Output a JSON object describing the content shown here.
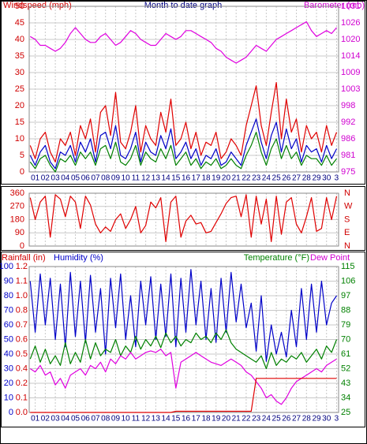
{
  "chart_data": [
    {
      "type": "line",
      "title": "Month to date graph",
      "ylabel": "Windspeed (mph)",
      "y2label": "Barometer (mb)",
      "xlim": [
        0.4,
        31.2
      ],
      "xticks": [
        {
          "value": 1,
          "label": "01"
        },
        {
          "value": 2,
          "label": "02"
        },
        {
          "value": 3,
          "label": "03"
        },
        {
          "value": 4,
          "label": "04"
        },
        {
          "value": 5,
          "label": "05"
        },
        {
          "value": 6,
          "label": "06"
        },
        {
          "value": 7,
          "label": "07"
        },
        {
          "value": 8,
          "label": "08"
        },
        {
          "value": 9,
          "label": "09"
        },
        10,
        11,
        12,
        13,
        14,
        15,
        16,
        17,
        18,
        19,
        20,
        21,
        22,
        23,
        24,
        25,
        26,
        27,
        28,
        29,
        30,
        {
          "value": 31,
          "label": "3"
        }
      ],
      "ylim": [
        0,
        50
      ],
      "yticks": [
        0,
        5,
        10,
        15,
        20,
        25,
        30,
        35,
        40,
        45,
        50
      ],
      "y2lim": [
        975.2,
        1031.2
      ],
      "y2ticks": [
        {
          "value": 975.2,
          "label": "975"
        },
        {
          "value": 980.8,
          "label": "981"
        },
        {
          "value": 986.4,
          "label": "986"
        },
        {
          "value": 992,
          "label": "992"
        },
        {
          "value": 997.6,
          "label": "998"
        },
        {
          "value": 1003.2,
          "label": "1003"
        },
        {
          "value": 1008.8,
          "label": "1009"
        },
        {
          "value": 1014.4,
          "label": "1014"
        },
        {
          "value": 1020,
          "label": "1020"
        },
        {
          "value": 1025.6,
          "label": "1026"
        },
        {
          "value": 1031.2,
          "label": "1031"
        }
      ],
      "grid": true,
      "x": [
        0.5,
        1,
        1.5,
        2,
        2.5,
        3,
        3.5,
        4,
        4.5,
        5,
        5.5,
        6,
        6.5,
        7,
        7.5,
        8,
        8.5,
        9,
        9.5,
        10,
        10.5,
        11,
        11.5,
        12,
        12.5,
        13,
        13.5,
        14,
        14.5,
        15,
        15.5,
        16,
        16.5,
        17,
        17.5,
        18,
        18.5,
        19,
        19.5,
        20,
        20.5,
        21,
        21.5,
        22,
        22.5,
        23,
        23.5,
        24,
        24.5,
        25,
        25.5,
        26,
        26.5,
        27,
        27.5,
        28,
        28.5,
        29,
        29.5,
        30,
        30.5,
        31
      ],
      "series": [
        {
          "color": "#e00000",
          "values": [
            8,
            4,
            10,
            12,
            6,
            3,
            10,
            8,
            12,
            5,
            14,
            10,
            16,
            6,
            18,
            20,
            11,
            24,
            9,
            7,
            12,
            20,
            6,
            14,
            10,
            8,
            18,
            12,
            22,
            8,
            10,
            15,
            7,
            12,
            5,
            9,
            8,
            12,
            4,
            6,
            10,
            8,
            5,
            14,
            20,
            26,
            14,
            8,
            18,
            27,
            10,
            22,
            12,
            16,
            6,
            14,
            10,
            12,
            6,
            14,
            8,
            12
          ]
        },
        {
          "color": "#0000c8",
          "values": [
            5,
            2,
            6,
            8,
            3,
            1,
            6,
            5,
            8,
            3,
            9,
            6,
            10,
            3,
            11,
            12,
            7,
            14,
            5,
            4,
            7,
            12,
            3,
            9,
            6,
            5,
            11,
            7,
            13,
            4,
            6,
            9,
            4,
            7,
            2,
            5,
            4,
            7,
            2,
            3,
            6,
            4,
            2,
            8,
            12,
            16,
            9,
            4,
            11,
            15,
            6,
            13,
            7,
            10,
            3,
            8,
            6,
            7,
            3,
            8,
            4,
            7
          ]
        },
        {
          "color": "#008000",
          "values": [
            3,
            1,
            4,
            5,
            2,
            0,
            4,
            3,
            5,
            2,
            6,
            4,
            6,
            2,
            7,
            8,
            4,
            9,
            3,
            2,
            4,
            8,
            2,
            6,
            4,
            3,
            7,
            4,
            8,
            2,
            4,
            6,
            2,
            4,
            1,
            3,
            2,
            4,
            1,
            2,
            4,
            2,
            1,
            5,
            8,
            12,
            6,
            2,
            7,
            10,
            4,
            8,
            4,
            6,
            2,
            5,
            4,
            4,
            2,
            5,
            2,
            4
          ]
        },
        {
          "color": "#e000e0",
          "axis": "y2",
          "values": [
            1021,
            1020,
            1018,
            1018,
            1017,
            1016,
            1017,
            1019,
            1022,
            1024,
            1022,
            1020,
            1019,
            1019,
            1021,
            1022,
            1020,
            1018,
            1019,
            1021,
            1023,
            1022,
            1020,
            1019,
            1018,
            1018,
            1020,
            1022,
            1021,
            1020,
            1021,
            1023,
            1023,
            1022,
            1021,
            1020,
            1019,
            1017,
            1016,
            1014,
            1013,
            1012,
            1013,
            1014,
            1016,
            1018,
            1017,
            1016,
            1018,
            1020,
            1021,
            1022,
            1023,
            1024,
            1025,
            1026,
            1023,
            1021,
            1022,
            1023,
            1022,
            1024
          ]
        }
      ]
    },
    {
      "type": "line",
      "xlim": [
        0.4,
        31.2
      ],
      "xticks": [
        1,
        2,
        3,
        4,
        5,
        6,
        7,
        8,
        9,
        10,
        11,
        12,
        13,
        14,
        15,
        16,
        17,
        18,
        19,
        20,
        21,
        22,
        23,
        24,
        25,
        26,
        27,
        28,
        29,
        30,
        31
      ],
      "ylim": [
        0,
        360
      ],
      "yticks": [
        0,
        90,
        180,
        270,
        360
      ],
      "y2lim": [
        0,
        360
      ],
      "y2ticks": [
        {
          "value": 0,
          "label": "N"
        },
        {
          "value": 90,
          "label": "E"
        },
        {
          "value": 180,
          "label": "S"
        },
        {
          "value": 270,
          "label": "W"
        },
        {
          "value": 360,
          "label": "N"
        }
      ],
      "grid": true,
      "x": [
        0.5,
        1,
        1.5,
        2,
        2.5,
        3,
        3.5,
        4,
        4.5,
        5,
        5.5,
        6,
        6.5,
        7,
        7.5,
        8,
        8.5,
        9,
        9.5,
        10,
        10.5,
        11,
        11.5,
        12,
        12.5,
        13,
        13.5,
        14,
        14.5,
        15,
        15.5,
        16,
        16.5,
        17,
        17.5,
        18,
        18.5,
        19,
        19.5,
        20,
        20.5,
        21,
        21.5,
        22,
        22.5,
        23,
        23.5,
        24,
        24.5,
        25,
        25.5,
        26,
        26.5,
        27,
        27.5,
        28,
        28.5,
        29,
        29.5,
        30,
        30.5,
        31
      ],
      "series": [
        {
          "color": "#e00000",
          "values": [
            330,
            180,
            300,
            340,
            60,
            350,
            320,
            200,
            340,
            300,
            120,
            340,
            280,
            150,
            90,
            130,
            100,
            180,
            220,
            120,
            180,
            270,
            90,
            140,
            300,
            260,
            330,
            30,
            300,
            340,
            60,
            170,
            210,
            150,
            160,
            90,
            100,
            160,
            220,
            290,
            330,
            340,
            200,
            350,
            60,
            340,
            150,
            320,
            30,
            340,
            80,
            300,
            330,
            150,
            90,
            200,
            330,
            100,
            120,
            330,
            180,
            340
          ]
        }
      ]
    },
    {
      "type": "line",
      "ylabel": "Rainfall (in)",
      "y3label": "Humidity (%)",
      "y2label": "Temperature (°F)",
      "annotation": "Dew Point",
      "xlim": [
        0.4,
        31.2
      ],
      "xticks": [
        {
          "value": 1,
          "label": "01"
        },
        {
          "value": 2,
          "label": "02"
        },
        {
          "value": 3,
          "label": "03"
        },
        {
          "value": 4,
          "label": "04"
        },
        {
          "value": 5,
          "label": "05"
        },
        {
          "value": 6,
          "label": "06"
        },
        {
          "value": 7,
          "label": "07"
        },
        {
          "value": 8,
          "label": "08"
        },
        {
          "value": 9,
          "label": "09"
        },
        10,
        11,
        12,
        13,
        14,
        15,
        16,
        17,
        18,
        19,
        20,
        21,
        22,
        23,
        24,
        25,
        26,
        27,
        28,
        29,
        30,
        {
          "value": 31,
          "label": "3"
        }
      ],
      "ylim": [
        0,
        1.2
      ],
      "yticks": [
        {
          "value": 0,
          "label": "0.0"
        },
        {
          "value": 0.12,
          "label": "0.1"
        },
        {
          "value": 0.24,
          "label": "0.2"
        },
        {
          "value": 0.36,
          "label": "0.4"
        },
        {
          "value": 0.48,
          "label": "0.5"
        },
        {
          "value": 0.6,
          "label": "0.6"
        },
        {
          "value": 0.72,
          "label": "0.7"
        },
        {
          "value": 0.84,
          "label": "0.8"
        },
        {
          "value": 0.96,
          "label": "1.0"
        },
        {
          "value": 1.08,
          "label": "1.1"
        },
        1.2
      ],
      "y3lim": [
        0,
        100
      ],
      "y3ticks": [
        0,
        10,
        20,
        30,
        40,
        50,
        60,
        70,
        80,
        90,
        100
      ],
      "y2lim": [
        25,
        115
      ],
      "y2ticks": [
        25,
        34,
        43,
        52,
        61,
        70,
        79,
        88,
        97,
        106,
        115
      ],
      "grid": true,
      "x": [
        0.5,
        1,
        1.5,
        2,
        2.5,
        3,
        3.5,
        4,
        4.5,
        5,
        5.5,
        6,
        6.5,
        7,
        7.5,
        8,
        8.5,
        9,
        9.5,
        10,
        10.5,
        11,
        11.5,
        12,
        12.5,
        13,
        13.5,
        14,
        14.5,
        15,
        15.5,
        16,
        16.5,
        17,
        17.5,
        18,
        18.5,
        19,
        19.5,
        20,
        20.5,
        21,
        21.5,
        22,
        22.5,
        23,
        23.5,
        24,
        24.5,
        25,
        25.5,
        26,
        26.5,
        27,
        27.5,
        28,
        28.5,
        29,
        29.5,
        30,
        30.5,
        31
      ],
      "series": [
        {
          "color": "#0000c8",
          "axis": "y3",
          "values": [
            90,
            55,
            95,
            60,
            92,
            50,
            88,
            45,
            96,
            52,
            90,
            48,
            94,
            55,
            85,
            40,
            92,
            58,
            95,
            50,
            80,
            45,
            90,
            60,
            93,
            50,
            88,
            52,
            95,
            45,
            92,
            55,
            98,
            60,
            90,
            50,
            85,
            48,
            92,
            55,
            96,
            62,
            88,
            58,
            75,
            42,
            80,
            35,
            60,
            40,
            55,
            38,
            70,
            45,
            85,
            50,
            88,
            55,
            90,
            60,
            75,
            80
          ]
        },
        {
          "color": "#008000",
          "axis": "y2",
          "values": [
            58,
            66,
            56,
            64,
            55,
            60,
            54,
            68,
            55,
            62,
            56,
            70,
            58,
            68,
            60,
            64,
            62,
            70,
            60,
            66,
            62,
            72,
            64,
            70,
            66,
            72,
            65,
            74,
            68,
            72,
            66,
            70,
            68,
            74,
            70,
            72,
            68,
            74,
            70,
            76,
            68,
            64,
            62,
            60,
            58,
            56,
            60,
            52,
            62,
            54,
            58,
            56,
            60,
            58,
            62,
            56,
            60,
            64,
            58,
            66,
            62,
            70
          ]
        },
        {
          "color": "#e000e0",
          "axis": "y2",
          "values": [
            52,
            50,
            54,
            48,
            50,
            42,
            46,
            40,
            48,
            50,
            52,
            48,
            54,
            52,
            56,
            50,
            58,
            55,
            60,
            58,
            62,
            58,
            60,
            62,
            63,
            62,
            64,
            60,
            62,
            40,
            56,
            58,
            60,
            62,
            60,
            58,
            56,
            55,
            54,
            56,
            58,
            56,
            54,
            50,
            48,
            44,
            40,
            34,
            36,
            32,
            30,
            34,
            40,
            44,
            46,
            48,
            50,
            52,
            50,
            54,
            56,
            58
          ]
        },
        {
          "color": "#e00000",
          "values": [
            0,
            0,
            0,
            0,
            0,
            0,
            0,
            0,
            0,
            0,
            0,
            0,
            0,
            0,
            0,
            0,
            0,
            0,
            0,
            0,
            0,
            0,
            0,
            0,
            0,
            0,
            0,
            0,
            0,
            0.01,
            0.01,
            0.01,
            0.01,
            0.01,
            0.01,
            0.01,
            0.01,
            0.01,
            0.01,
            0.01,
            0.01,
            0.01,
            0.01,
            0.01,
            0.01,
            0.28,
            0.28,
            0.28,
            0.28,
            0.28,
            0.28,
            0.28,
            0.28,
            0.28,
            0.28,
            0.28,
            0.28,
            0.28,
            0.28,
            0.28,
            0.28,
            0.28
          ]
        }
      ]
    }
  ]
}
